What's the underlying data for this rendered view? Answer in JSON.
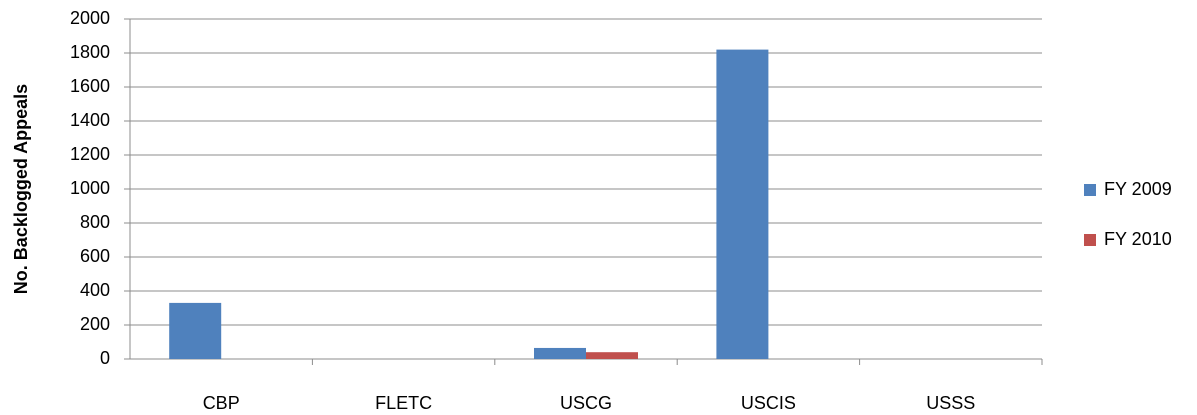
{
  "chart_data": {
    "type": "bar",
    "y_label": "No. Backlogged Appeals",
    "categories": [
      "CBP",
      "FLETC",
      "USCG",
      "USCIS",
      "USSS"
    ],
    "series": [
      {
        "name": "FY 2009",
        "color": "#4f81bd",
        "values": [
          330,
          0,
          65,
          1820,
          0
        ]
      },
      {
        "name": "FY 2010",
        "color": "#c0504d",
        "values": [
          0,
          0,
          40,
          0,
          0
        ]
      }
    ],
    "ylim": [
      0,
      2000
    ],
    "yticks": [
      0,
      200,
      400,
      600,
      800,
      1000,
      1200,
      1400,
      1600,
      1800,
      2000
    ],
    "grid": true,
    "legend": "right"
  }
}
